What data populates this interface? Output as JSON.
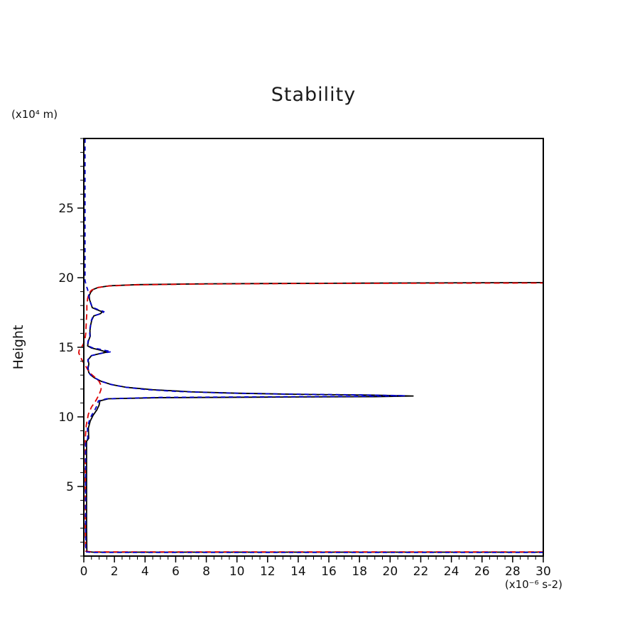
{
  "chart_data": {
    "type": "line",
    "title": "Stability",
    "ylabel": "Height",
    "y_unit_label": "(x10⁴ m)",
    "x_unit_label": "(x10⁻⁶ s-2)",
    "xlim": [
      0,
      30
    ],
    "ylim": [
      0,
      30
    ],
    "grid": false,
    "legend": "none",
    "x_major_ticks": [
      0,
      2,
      4,
      6,
      8,
      10,
      12,
      14,
      16,
      18,
      20,
      22,
      24,
      26,
      28,
      30
    ],
    "y_major_ticks": [
      5,
      10,
      15,
      20,
      25
    ],
    "x_minor_step": 0.5,
    "y_minor_step": 1,
    "axis_color": "#000000",
    "series": [
      {
        "name": "black-solid",
        "color": "#000000",
        "dash": null,
        "width": 1.8,
        "points": [
          [
            30,
            0.28
          ],
          [
            0.6,
            0.28
          ],
          [
            0.2,
            0.32
          ],
          [
            0.18,
            2.0
          ],
          [
            0.18,
            8.25
          ],
          [
            0.32,
            8.45
          ],
          [
            0.3,
            9.2
          ],
          [
            0.42,
            9.7
          ],
          [
            0.6,
            10.1
          ],
          [
            0.85,
            10.5
          ],
          [
            1.0,
            10.85
          ],
          [
            1.05,
            11.15
          ],
          [
            1.6,
            11.3
          ],
          [
            5,
            11.38
          ],
          [
            12,
            11.42
          ],
          [
            19,
            11.45
          ],
          [
            21.5,
            11.5
          ],
          [
            19,
            11.56
          ],
          [
            14,
            11.62
          ],
          [
            10,
            11.7
          ],
          [
            7,
            11.8
          ],
          [
            4.5,
            11.95
          ],
          [
            2.8,
            12.12
          ],
          [
            1.8,
            12.32
          ],
          [
            1.15,
            12.55
          ],
          [
            0.7,
            12.8
          ],
          [
            0.45,
            13.0
          ],
          [
            0.32,
            13.2
          ],
          [
            0.28,
            13.5
          ],
          [
            0.33,
            13.8
          ],
          [
            0.28,
            14.1
          ],
          [
            0.5,
            14.4
          ],
          [
            1.05,
            14.55
          ],
          [
            1.5,
            14.65
          ],
          [
            1.05,
            14.8
          ],
          [
            0.5,
            14.95
          ],
          [
            0.25,
            15.1
          ],
          [
            0.3,
            15.45
          ],
          [
            0.42,
            15.8
          ],
          [
            0.4,
            16.2
          ],
          [
            0.45,
            16.6
          ],
          [
            0.52,
            16.95
          ],
          [
            0.65,
            17.25
          ],
          [
            1.1,
            17.42
          ],
          [
            1.2,
            17.55
          ],
          [
            0.85,
            17.7
          ],
          [
            0.55,
            17.85
          ],
          [
            0.48,
            18.1
          ],
          [
            0.38,
            18.4
          ],
          [
            0.35,
            18.7
          ],
          [
            0.45,
            18.95
          ],
          [
            0.6,
            19.15
          ],
          [
            0.95,
            19.3
          ],
          [
            1.7,
            19.42
          ],
          [
            3.5,
            19.5
          ],
          [
            8,
            19.56
          ],
          [
            16,
            19.6
          ],
          [
            30,
            19.65
          ]
        ]
      },
      {
        "name": "red-dashed",
        "color": "#dd0000",
        "dash": "8,5",
        "width": 1.8,
        "points": [
          [
            30,
            0.3
          ],
          [
            0.5,
            0.3
          ],
          [
            0.12,
            0.35
          ],
          [
            0.1,
            2.0
          ],
          [
            0.1,
            8.5
          ],
          [
            0.16,
            9.4
          ],
          [
            0.3,
            10.2
          ],
          [
            0.5,
            10.7
          ],
          [
            0.75,
            11.1
          ],
          [
            1.0,
            11.6
          ],
          [
            1.12,
            11.95
          ],
          [
            1.15,
            12.2
          ],
          [
            1.0,
            12.55
          ],
          [
            0.72,
            12.85
          ],
          [
            0.45,
            13.1
          ],
          [
            0.28,
            13.35
          ],
          [
            0.12,
            13.65
          ],
          [
            -0.05,
            13.95
          ],
          [
            -0.22,
            14.3
          ],
          [
            -0.33,
            14.6
          ],
          [
            -0.3,
            14.8
          ],
          [
            -0.15,
            15.0
          ],
          [
            -0.02,
            15.25
          ],
          [
            0.08,
            15.6
          ],
          [
            0.13,
            16.0
          ],
          [
            0.15,
            16.5
          ],
          [
            0.17,
            17.0
          ],
          [
            0.2,
            17.5
          ],
          [
            0.2,
            18.0
          ],
          [
            0.25,
            18.5
          ],
          [
            0.33,
            18.85
          ],
          [
            0.5,
            19.1
          ],
          [
            0.85,
            19.28
          ],
          [
            1.6,
            19.4
          ],
          [
            3.2,
            19.48
          ],
          [
            7,
            19.54
          ],
          [
            14,
            19.58
          ],
          [
            30,
            19.62
          ]
        ]
      },
      {
        "name": "blue-dashed",
        "color": "#0000cc",
        "dash": "6,5",
        "width": 1.8,
        "points": [
          [
            30,
            0.26
          ],
          [
            0.55,
            0.26
          ],
          [
            0.14,
            0.3
          ],
          [
            0.12,
            2.0
          ],
          [
            0.12,
            8.25
          ],
          [
            0.26,
            8.45
          ],
          [
            0.24,
            9.2
          ],
          [
            0.35,
            9.7
          ],
          [
            0.5,
            10.1
          ],
          [
            0.72,
            10.5
          ],
          [
            0.88,
            10.85
          ],
          [
            0.95,
            11.15
          ],
          [
            1.5,
            11.3
          ],
          [
            5,
            11.4
          ],
          [
            12,
            11.44
          ],
          [
            18,
            11.47
          ],
          [
            21.0,
            11.52
          ],
          [
            18,
            11.58
          ],
          [
            13,
            11.64
          ],
          [
            9,
            11.72
          ],
          [
            6,
            11.83
          ],
          [
            4,
            11.97
          ],
          [
            2.6,
            12.15
          ],
          [
            1.7,
            12.35
          ],
          [
            1.1,
            12.58
          ],
          [
            0.68,
            12.82
          ],
          [
            0.44,
            13.02
          ],
          [
            0.3,
            13.22
          ],
          [
            0.26,
            13.5
          ],
          [
            0.3,
            13.8
          ],
          [
            0.26,
            14.1
          ],
          [
            0.5,
            14.4
          ],
          [
            1.2,
            14.58
          ],
          [
            1.8,
            14.68
          ],
          [
            1.2,
            14.82
          ],
          [
            0.55,
            14.97
          ],
          [
            0.24,
            15.12
          ],
          [
            0.28,
            15.45
          ],
          [
            0.4,
            15.8
          ],
          [
            0.38,
            16.2
          ],
          [
            0.44,
            16.6
          ],
          [
            0.5,
            16.95
          ],
          [
            0.62,
            17.25
          ],
          [
            1.2,
            17.44
          ],
          [
            1.32,
            17.56
          ],
          [
            0.9,
            17.72
          ],
          [
            0.55,
            17.88
          ],
          [
            0.45,
            18.15
          ],
          [
            0.35,
            18.5
          ],
          [
            0.3,
            18.85
          ],
          [
            0.25,
            19.15
          ],
          [
            0.15,
            19.45
          ],
          [
            0.08,
            19.8
          ],
          [
            0.08,
            30
          ]
        ]
      }
    ]
  }
}
